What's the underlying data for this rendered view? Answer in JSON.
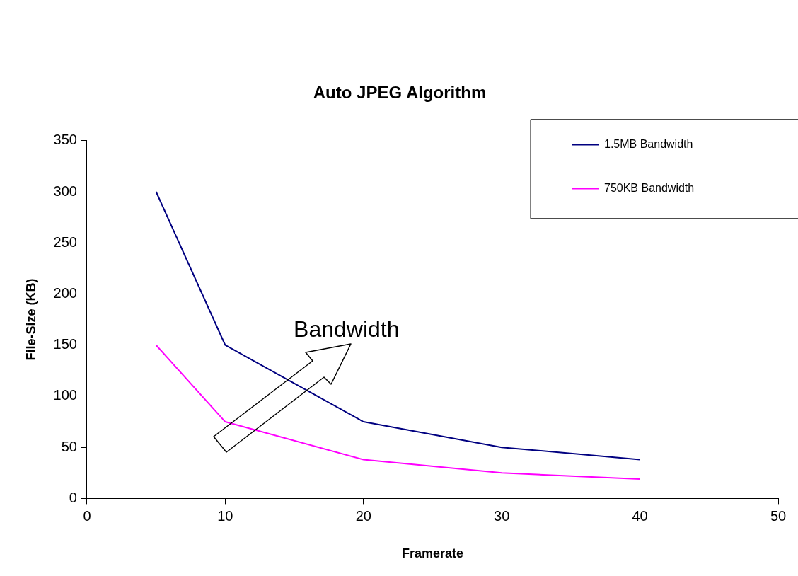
{
  "chart_data": {
    "type": "line",
    "title": "Auto JPEG Algorithm",
    "xlabel": "Framerate",
    "ylabel": "File-Size (KB)",
    "x": [
      5,
      10,
      20,
      30,
      40
    ],
    "series": [
      {
        "name": "1.5MB Bandwidth",
        "color": "#000080",
        "values": [
          300,
          150,
          75,
          50,
          38
        ]
      },
      {
        "name": "750KB Bandwidth",
        "color": "#ff00ff",
        "values": [
          150,
          75,
          38,
          25,
          19
        ]
      }
    ],
    "xlim": [
      0,
      50
    ],
    "xticks": [
      0,
      10,
      20,
      30,
      40,
      50
    ],
    "ylim": [
      0,
      350
    ],
    "yticks": [
      0,
      50,
      100,
      150,
      200,
      250,
      300,
      350
    ],
    "legend": "top right",
    "marker": "none",
    "line_style": "solid",
    "annotations": [
      "Bandwidth"
    ]
  }
}
